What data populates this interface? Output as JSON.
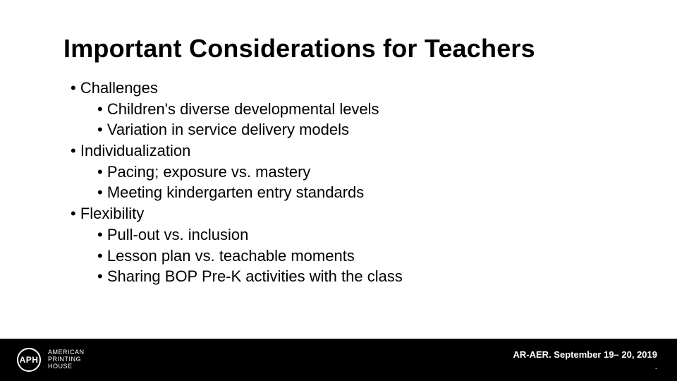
{
  "title": "Important Considerations for Teachers",
  "bullets": [
    {
      "level": 1,
      "text": "Challenges"
    },
    {
      "level": 2,
      "text": "Children's diverse developmental levels"
    },
    {
      "level": 2,
      "text": "Variation in service delivery models"
    },
    {
      "level": 1,
      "text": "Individualization"
    },
    {
      "level": 2,
      "text": "Pacing; exposure vs. mastery"
    },
    {
      "level": 2,
      "text": "Meeting kindergarten entry standards"
    },
    {
      "level": 1,
      "text": "Flexibility"
    },
    {
      "level": 2,
      "text": "Pull-out vs. inclusion"
    },
    {
      "level": 2,
      "text": "Lesson plan vs. teachable moments"
    },
    {
      "level": 2,
      "text": "Sharing BOP Pre-K activities with the class"
    }
  ],
  "footer": {
    "logo_initials": "APH",
    "logo_line1": "AMERICAN",
    "logo_line2": "PRINTING",
    "logo_line3": "HOUSE",
    "right_text": "AR-AER. September 19– 20, 2019",
    "dot": "."
  },
  "style": {
    "title_fontsize": 36,
    "body_fontsize": 22,
    "footer_bg": "#000000",
    "footer_fg": "#ffffff",
    "slide_bg": "#ffffff",
    "text_color": "#000000"
  }
}
